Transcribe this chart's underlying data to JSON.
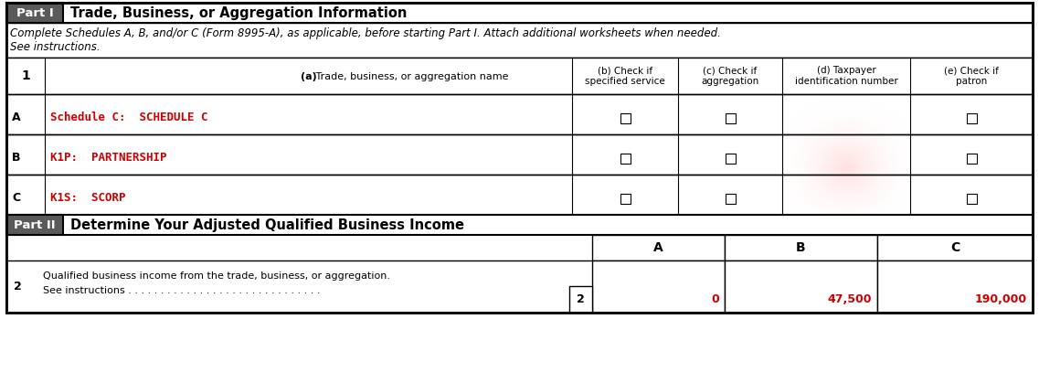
{
  "title_part1": "Part I",
  "title_part1_text": "Trade, Business, or Aggregation Information",
  "instruction_line1": "Complete Schedules A, B, and/or C (Form 8995-A), as applicable, before starting Part I. Attach additional worksheets when needed.",
  "instruction_line2": "See instructions.",
  "col1_header": "1",
  "col_a_header_bold": "(a)",
  "col_a_header_norm": " Trade, business, or aggregation name",
  "col_b_header": "(b) Check if\nspecified service",
  "col_c_header": "(c) Check if\naggregation",
  "col_d_header": "(d) Taxpayer\nidentification number",
  "col_e_header": "(e) Check if\npatron",
  "row_A_label": "A",
  "row_A_text": "Schedule C:  SCHEDULE C",
  "row_B_label": "B",
  "row_B_text": "K1P:  PARTNERSHIP",
  "row_C_label": "C",
  "row_C_text": "K1S:  SCORP",
  "part2_label": "Part II",
  "part2_text": "Determine Your Adjusted Qualified Business Income",
  "col_A2": "A",
  "col_B2": "B",
  "col_C2": "C",
  "row2_num": "2",
  "row2_text1": "Qualified business income from the trade, business, or aggregation.",
  "row2_text2": "See instructions",
  "row2_dots": " . . . . . . . . . . . . . . . . . . . . . . . . . . . . . .",
  "row2_val_A": "0",
  "row2_val_B": "47,500",
  "row2_val_C": "190,000",
  "red_color": "#CC0000",
  "black_color": "#000000",
  "dark_gray_bg": "#5A5A5A",
  "fig_bg": "#FFFFFF",
  "pink_top": "#F2C0C0",
  "pink_mid": "#F0D0D0",
  "pink_bot": "#F5A0A0"
}
